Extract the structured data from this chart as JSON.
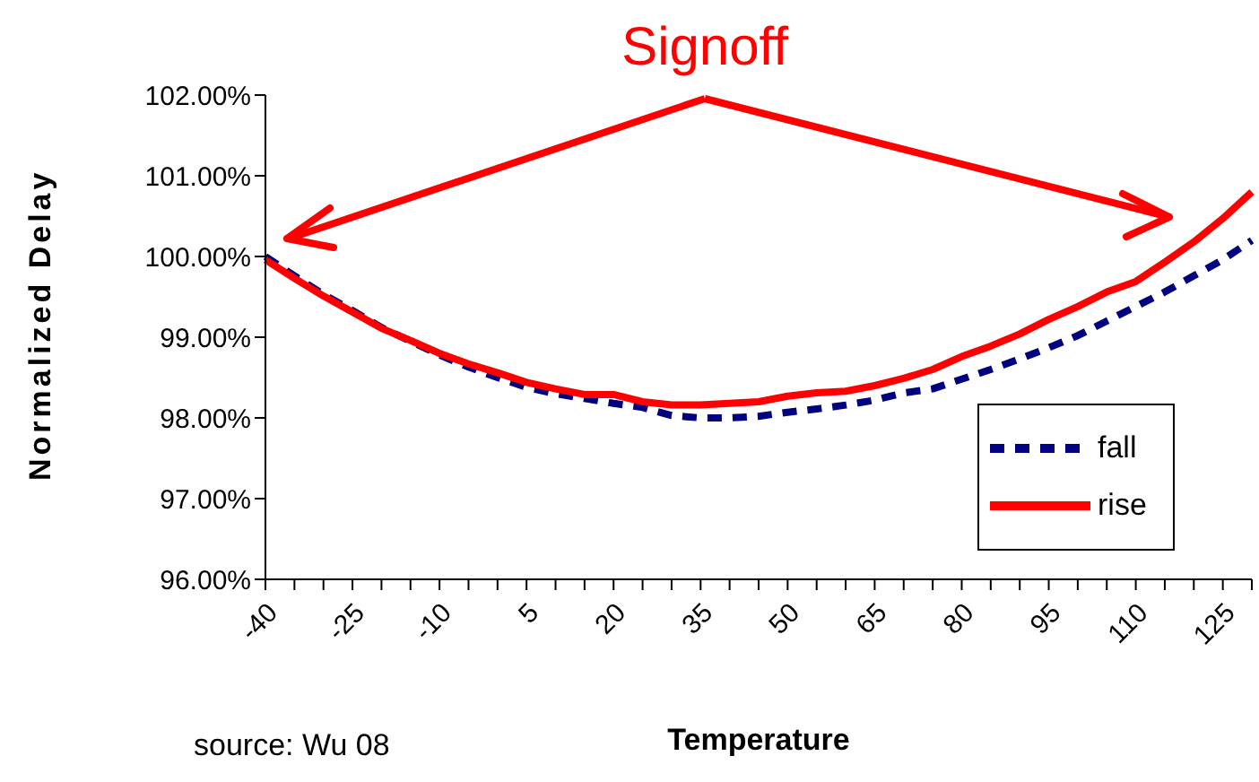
{
  "chart_data": {
    "type": "line",
    "title": "Signoff",
    "xlabel": "Temperature",
    "ylabel": "Normalized Delay",
    "categories": [
      "-40",
      null,
      null,
      "-25",
      null,
      null,
      "-10",
      null,
      null,
      "5",
      null,
      null,
      "20",
      null,
      null,
      "35",
      null,
      null,
      "50",
      null,
      null,
      "65",
      null,
      null,
      "80",
      null,
      null,
      "95",
      null,
      null,
      "110",
      null,
      null,
      "125",
      null
    ],
    "series": [
      {
        "name": "fall",
        "color": "#000080",
        "line_style": "dashed",
        "values": [
          100.0,
          99.76,
          99.53,
          99.33,
          99.12,
          98.95,
          98.78,
          98.63,
          98.5,
          98.38,
          98.3,
          98.24,
          98.18,
          98.13,
          98.03,
          98.0,
          98.0,
          98.02,
          98.07,
          98.11,
          98.16,
          98.22,
          98.31,
          98.36,
          98.48,
          98.6,
          98.73,
          98.87,
          99.02,
          99.2,
          99.38,
          99.56,
          99.76,
          99.96,
          100.2
        ]
      },
      {
        "name": "rise",
        "color": "#ff0000",
        "line_style": "solid",
        "values": [
          99.96,
          99.73,
          99.51,
          99.31,
          99.11,
          98.96,
          98.8,
          98.67,
          98.56,
          98.44,
          98.36,
          98.29,
          98.29,
          98.2,
          98.16,
          98.16,
          98.18,
          98.2,
          98.27,
          98.31,
          98.33,
          98.4,
          98.49,
          98.6,
          98.76,
          98.89,
          99.04,
          99.22,
          99.38,
          99.56,
          99.69,
          99.93,
          100.18,
          100.47,
          100.8
        ]
      }
    ],
    "ylim": [
      96,
      102
    ],
    "yticks": [
      {
        "value": 96,
        "label": "96.00%"
      },
      {
        "value": 97,
        "label": "97.00%"
      },
      {
        "value": 98,
        "label": "98.00%"
      },
      {
        "value": 99,
        "label": "99.00%"
      },
      {
        "value": 100,
        "label": "100.00%"
      },
      {
        "value": 101,
        "label": "101.00%"
      },
      {
        "value": 102,
        "label": "102.00%"
      }
    ],
    "legend": "bottom right",
    "annotations": [
      "source: Wu 08"
    ]
  }
}
